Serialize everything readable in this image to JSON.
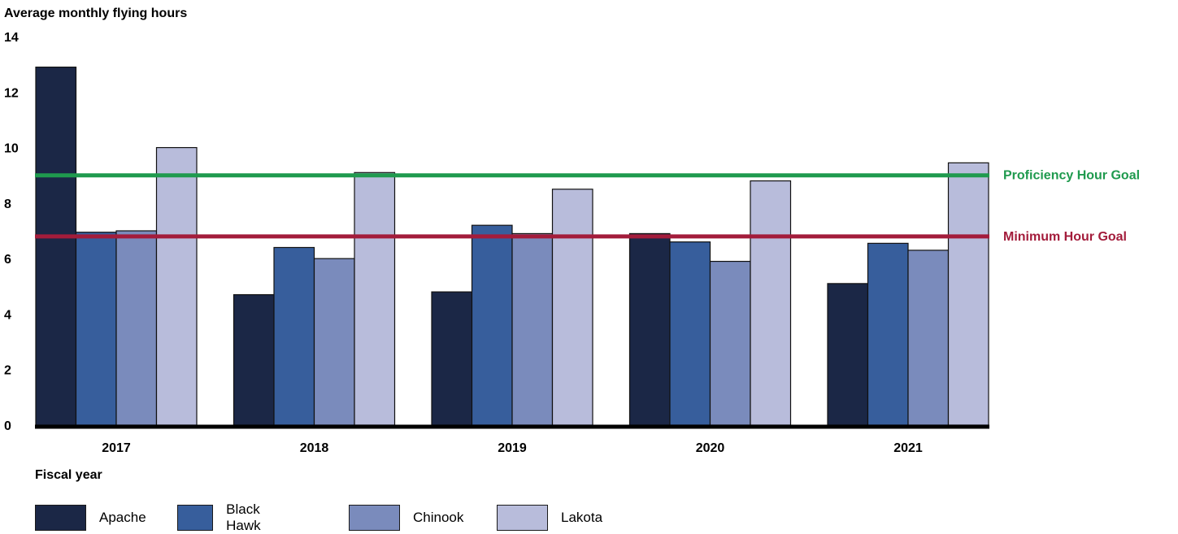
{
  "chart_data": {
    "type": "bar",
    "ylabel": "Average monthly flying hours",
    "xlabel": "Fiscal year",
    "ylim": [
      0,
      14
    ],
    "yticks": [
      "0",
      "2",
      "4",
      "6",
      "8",
      "10",
      "12",
      "14"
    ],
    "categories": [
      "2017",
      "2018",
      "2019",
      "2020",
      "2021"
    ],
    "series": [
      {
        "name": "Apache",
        "color": "#1b2746",
        "values": [
          12.9,
          4.7,
          4.8,
          6.9,
          5.1
        ]
      },
      {
        "name": "Black Hawk",
        "color": "#375e9c",
        "values": [
          6.95,
          6.4,
          7.2,
          6.6,
          6.55
        ]
      },
      {
        "name": "Chinook",
        "color": "#7a8bbc",
        "values": [
          7.0,
          6.0,
          6.9,
          5.9,
          6.3
        ]
      },
      {
        "name": "Lakota",
        "color": "#b8bcdb",
        "values": [
          10.0,
          9.1,
          8.5,
          8.8,
          9.45
        ]
      }
    ],
    "reference_lines": [
      {
        "label": "Proficiency Hour Goal",
        "value": 9.0,
        "color": "#1f9a4e"
      },
      {
        "label": "Minimum Hour Goal",
        "value": 6.8,
        "color": "#a31c3b"
      }
    ],
    "legend_position": "bottom-left",
    "grid": false
  }
}
